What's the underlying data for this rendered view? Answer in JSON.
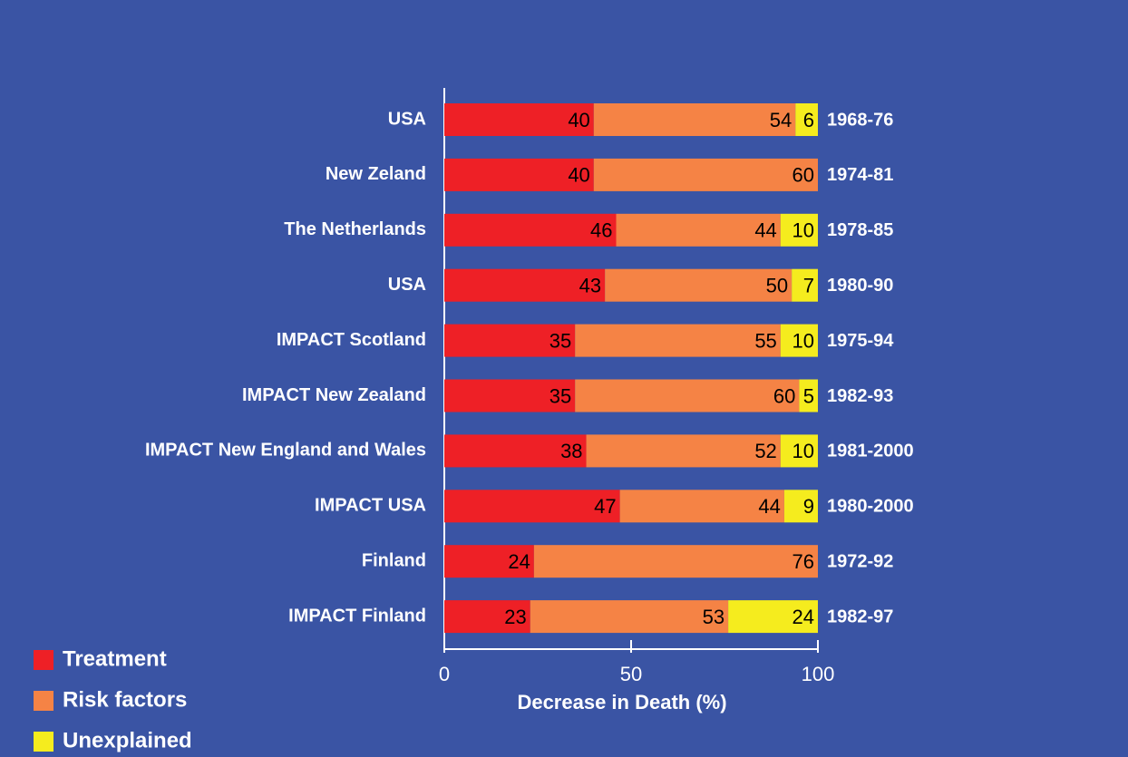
{
  "chart_data": {
    "type": "stacked-bar",
    "orientation": "horizontal",
    "categories": [
      "USA",
      "New Zeland",
      "The Netherlands",
      "USA",
      "IMPACT Scotland",
      "IMPACT New Zealand",
      "IMPACT New England and Wales",
      "IMPACT USA",
      "Finland",
      "IMPACT Finland"
    ],
    "periods": [
      "1968-76",
      "1974-81",
      "1978-85",
      "1980-90",
      "1975-94",
      "1982-93",
      "1981-2000",
      "1980-2000",
      "1972-92",
      "1982-97"
    ],
    "series": [
      {
        "name": "Treatment",
        "color": "#ee2026",
        "values": [
          40,
          40,
          46,
          43,
          35,
          35,
          38,
          47,
          24,
          23
        ]
      },
      {
        "name": "Risk factors",
        "color": "#f58345",
        "values": [
          54,
          60,
          44,
          50,
          55,
          60,
          52,
          44,
          76,
          53
        ]
      },
      {
        "name": "Unexplained",
        "color": "#f5ec1e",
        "values": [
          6,
          null,
          10,
          7,
          10,
          5,
          10,
          9,
          null,
          24
        ]
      }
    ],
    "xlabel": "Decrease  in Death (%)",
    "xlim": [
      0,
      100
    ],
    "xticks": [
      0,
      50,
      100
    ],
    "legend": "bottom-left"
  }
}
